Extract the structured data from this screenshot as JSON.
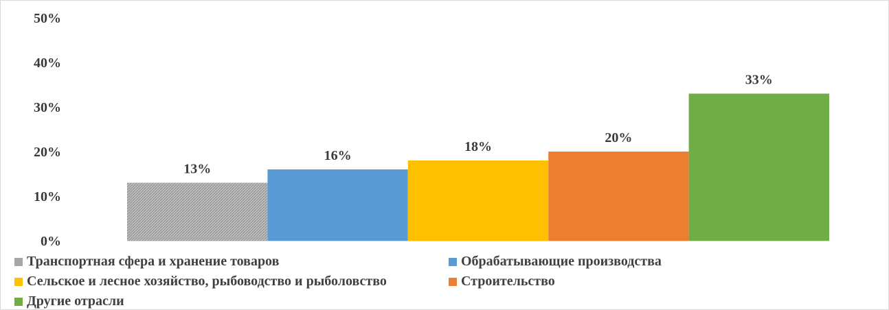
{
  "chart_data": {
    "type": "bar",
    "categories": [
      "Транспортная сфера и хранение товаров",
      "Обрабатывающие производства",
      "Сельское и лесное хозяйство, рыбоводство и рыболовство",
      "Строительство",
      "Другие отрасли"
    ],
    "values": [
      13,
      16,
      18,
      20,
      33
    ],
    "data_labels": [
      "13%",
      "16%",
      "18%",
      "20%",
      "33%"
    ],
    "colors": [
      "#a6a6a6",
      "#5b9bd5",
      "#ffc000",
      "#ed7d31",
      "#70ad47"
    ],
    "pattern_first_bar": "hatched-gray",
    "ylim": [
      0,
      50
    ],
    "yticks": [
      0,
      10,
      20,
      30,
      40,
      50
    ],
    "ytick_labels": [
      "0%",
      "10%",
      "20%",
      "30%",
      "40%",
      "50%"
    ],
    "grid": false,
    "legend_position": "bottom"
  }
}
